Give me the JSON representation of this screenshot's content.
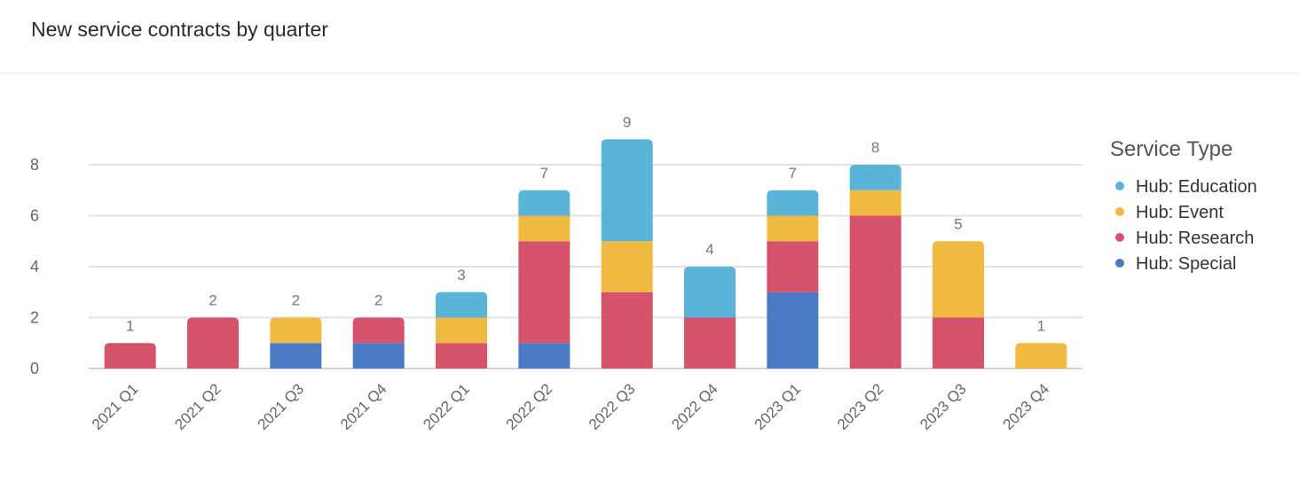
{
  "title": "New service contracts by quarter",
  "chart_data": {
    "type": "bar",
    "stacked": true,
    "title": "New service contracts by quarter",
    "xlabel": "",
    "ylabel": "",
    "ylim": [
      0,
      9
    ],
    "yticks": [
      0,
      2,
      4,
      6,
      8
    ],
    "grid": true,
    "legend_position": "right",
    "legend_title": "Service Type",
    "categories": [
      "2021 Q1",
      "2021 Q2",
      "2021 Q3",
      "2021 Q4",
      "2022 Q1",
      "2022 Q2",
      "2022 Q3",
      "2022 Q4",
      "2023 Q1",
      "2023 Q2",
      "2023 Q3",
      "2023 Q4"
    ],
    "totals": [
      1,
      2,
      2,
      2,
      3,
      7,
      9,
      4,
      7,
      8,
      5,
      1
    ],
    "series": [
      {
        "name": "Hub: Special",
        "color": "#4a7bc4",
        "values": [
          0,
          0,
          1,
          1,
          0,
          1,
          0,
          0,
          3,
          0,
          0,
          0
        ]
      },
      {
        "name": "Hub: Research",
        "color": "#d6546b",
        "values": [
          1,
          2,
          0,
          1,
          1,
          4,
          3,
          2,
          2,
          6,
          2,
          0
        ]
      },
      {
        "name": "Hub: Event",
        "color": "#f0b942",
        "values": [
          0,
          0,
          1,
          0,
          1,
          1,
          2,
          0,
          1,
          1,
          3,
          1
        ]
      },
      {
        "name": "Hub: Education",
        "color": "#5ab4d8",
        "values": [
          0,
          0,
          0,
          0,
          1,
          1,
          4,
          2,
          1,
          1,
          0,
          0
        ]
      }
    ],
    "legend_order": [
      "Hub: Education",
      "Hub: Event",
      "Hub: Research",
      "Hub: Special"
    ]
  }
}
